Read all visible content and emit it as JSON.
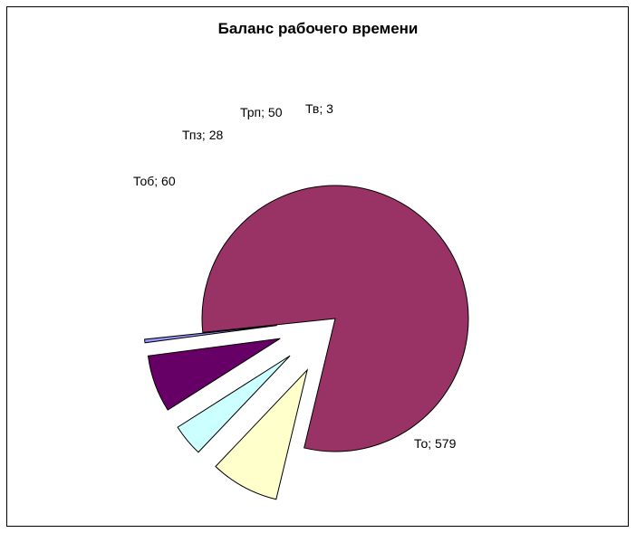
{
  "chart_data": {
    "type": "pie",
    "title": "Баланс рабочего времени",
    "slices": [
      {
        "name": "То",
        "value": 579,
        "label": "То; 579",
        "color": "#993366",
        "exploded": false
      },
      {
        "name": "Тоб",
        "value": 60,
        "label": "Тоб; 60",
        "color": "#FFFFCC",
        "exploded": true
      },
      {
        "name": "Тпз",
        "value": 28,
        "label": "Тпз; 28",
        "color": "#CCFFFF",
        "exploded": true
      },
      {
        "name": "Трп",
        "value": 50,
        "label": "Трп; 50",
        "color": "#660066",
        "exploded": true
      },
      {
        "name": "Тв",
        "value": 3,
        "label": "Тв; 3",
        "color": "#9999FF",
        "exploded": true
      }
    ],
    "legend": "none"
  }
}
